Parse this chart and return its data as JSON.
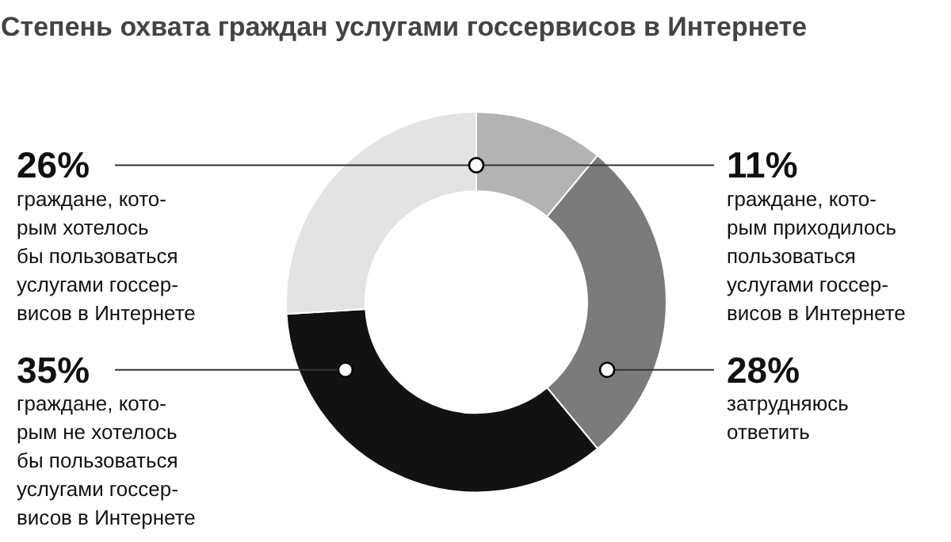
{
  "chart_data": {
    "type": "donut",
    "title": "Степень охвата граждан услугами госсервисов в Интернете",
    "categories": [
      "граждане, кото-\nрым приходилось\nпользоваться\nуслугами госсер-\nвисов в Интернете",
      "затрудняюсь\nответить",
      "граждане, кото-\nрым не хотелось\nбы пользоваться\nуслугами госсер-\nвисов в Интернете",
      "граждане, кото-\nрым хотелось\nбы пользоваться\nуслугами госсер-\nвисов в Интернете"
    ],
    "values": [
      11,
      28,
      35,
      26
    ],
    "colors": [
      "#b3b3b3",
      "#7b7b7b",
      "#121212",
      "#e3e3e3"
    ],
    "value_labels": [
      "11%",
      "28%",
      "35%",
      "26%"
    ]
  }
}
